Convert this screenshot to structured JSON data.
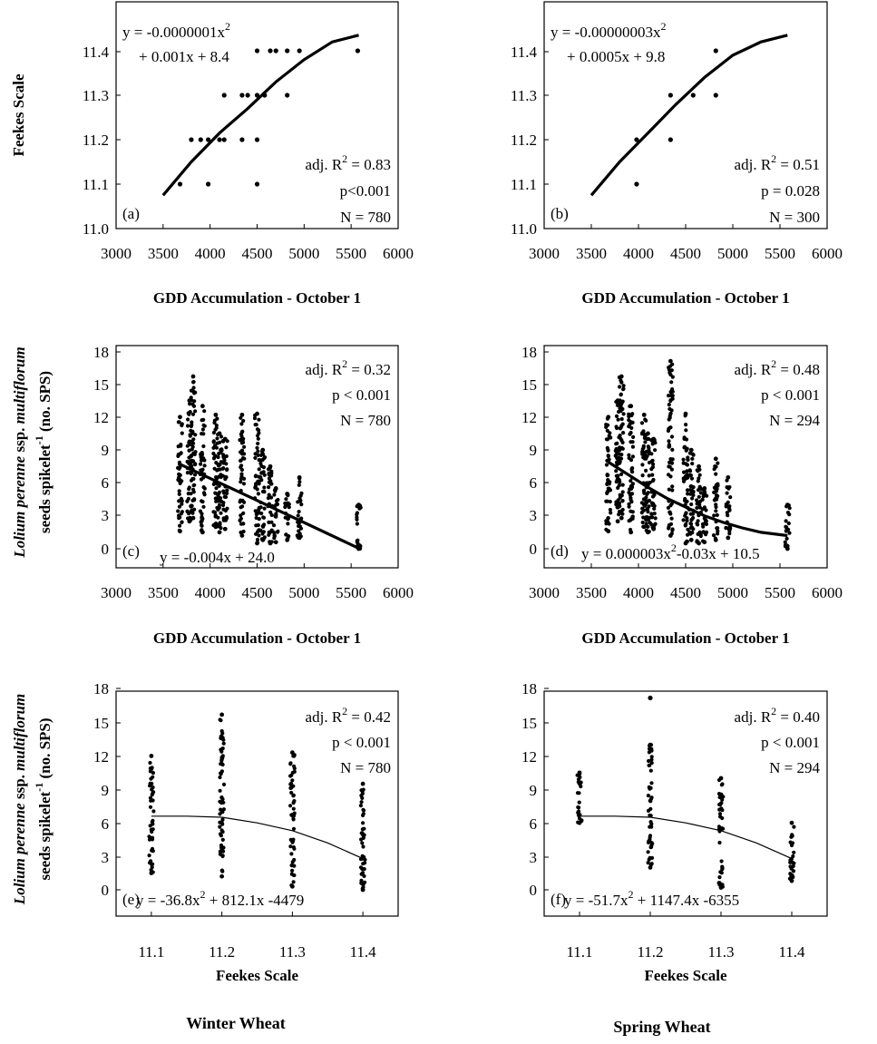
{
  "chart_data": [
    {
      "panel": "a",
      "type": "scatter",
      "column": "Winter Wheat",
      "xlabel": "GDD Accumulation - October 1",
      "ylabel": "Feekes Scale",
      "xlim": [
        3000,
        6000
      ],
      "ylim": [
        11.0,
        11.45
      ],
      "xticks": [
        "3000",
        "3500",
        "4000",
        "4500",
        "5000",
        "5500",
        "6000"
      ],
      "yticks": [
        "11.0",
        "11.1",
        "11.2",
        "11.3",
        "11.4"
      ],
      "points": [
        [
          3680,
          11.1
        ],
        [
          3980,
          11.1
        ],
        [
          4500,
          11.1
        ],
        [
          3800,
          11.2
        ],
        [
          3900,
          11.2
        ],
        [
          3980,
          11.2
        ],
        [
          4100,
          11.2
        ],
        [
          4150,
          11.2
        ],
        [
          4340,
          11.2
        ],
        [
          4500,
          11.2
        ],
        [
          4150,
          11.3
        ],
        [
          4340,
          11.3
        ],
        [
          4400,
          11.3
        ],
        [
          4500,
          11.3
        ],
        [
          4580,
          11.3
        ],
        [
          4820,
          11.3
        ],
        [
          4500,
          11.4
        ],
        [
          4640,
          11.4
        ],
        [
          4700,
          11.4
        ],
        [
          4820,
          11.4
        ],
        [
          4950,
          11.4
        ],
        [
          5570,
          11.4
        ]
      ],
      "fit": {
        "type": "quadratic",
        "x_range": [
          3500,
          5580
        ],
        "points": [
          [
            3500,
            11.075
          ],
          [
            3800,
            11.15
          ],
          [
            4100,
            11.215
          ],
          [
            4400,
            11.27
          ],
          [
            4700,
            11.33
          ],
          [
            5000,
            11.38
          ],
          [
            5300,
            11.42
          ],
          [
            5580,
            11.435
          ]
        ]
      },
      "equation": [
        "y = -0.0000001x",
        "+ 0.001x + 8.4"
      ],
      "stats": {
        "r2": "adj. R",
        "r2_val": " = 0.83",
        "p": "p<0.001",
        "n": "N = 780"
      },
      "tag": "(a)"
    },
    {
      "panel": "b",
      "type": "scatter",
      "column": "Spring Wheat",
      "xlabel": "GDD Accumulation - October 1",
      "ylabel": "",
      "xlim": [
        3000,
        6000
      ],
      "ylim": [
        11.0,
        11.45
      ],
      "xticks": [
        "3000",
        "3500",
        "4000",
        "4500",
        "5000",
        "5500",
        "6000"
      ],
      "yticks": [
        "11.0",
        "11.1",
        "11.2",
        "11.3",
        "11.4"
      ],
      "points": [
        [
          3980,
          11.1
        ],
        [
          3980,
          11.2
        ],
        [
          4340,
          11.2
        ],
        [
          4340,
          11.3
        ],
        [
          4580,
          11.3
        ],
        [
          4820,
          11.3
        ],
        [
          4820,
          11.4
        ]
      ],
      "fit": {
        "type": "quadratic",
        "x_range": [
          3500,
          5580
        ],
        "points": [
          [
            3500,
            11.075
          ],
          [
            3800,
            11.15
          ],
          [
            4100,
            11.215
          ],
          [
            4400,
            11.28
          ],
          [
            4700,
            11.34
          ],
          [
            5000,
            11.39
          ],
          [
            5300,
            11.42
          ],
          [
            5580,
            11.435
          ]
        ]
      },
      "equation": [
        "y = -0.00000003x",
        "+ 0.0005x + 9.8"
      ],
      "stats": {
        "r2": "adj. R",
        "r2_val": " = 0.51",
        "p": "p = 0.028",
        "n": "N = 300"
      },
      "tag": "(b)"
    },
    {
      "panel": "c",
      "type": "scatter",
      "column": "Winter Wheat",
      "xlabel": "GDD Accumulation - October 1",
      "ylabel": [
        "Lolium perenne",
        " ssp. ",
        "multiflorum",
        "seeds spikelet",
        "-1",
        " (no. SPS)"
      ],
      "xlim": [
        3000,
        6000
      ],
      "ylim": [
        -2,
        18
      ],
      "xticks": [
        "3000",
        "3500",
        "4000",
        "4500",
        "5000",
        "5500",
        "6000"
      ],
      "yticks": [
        "0",
        "3",
        "6",
        "9",
        "12",
        "15",
        "18"
      ],
      "columns": [
        [
          3680,
          1.6,
          12.0
        ],
        [
          3780,
          2.5,
          13.5
        ],
        [
          3820,
          2.8,
          15.7
        ],
        [
          3920,
          1.5,
          13.0
        ],
        [
          4060,
          2.0,
          12.2
        ],
        [
          4100,
          1.5,
          10.5
        ],
        [
          4160,
          1.8,
          10.0
        ],
        [
          4340,
          1.2,
          12.2
        ],
        [
          4500,
          0.5,
          12.3
        ],
        [
          4560,
          0.8,
          9.0
        ],
        [
          4640,
          0.5,
          7.5
        ],
        [
          4700,
          0.6,
          5.5
        ],
        [
          4820,
          0.8,
          5.0
        ],
        [
          4950,
          1.0,
          6.5
        ],
        [
          5580,
          0.0,
          4.0
        ]
      ],
      "fit": {
        "type": "linear",
        "points": [
          [
            3680,
            7.7
          ],
          [
            5580,
            0.05
          ]
        ]
      },
      "equation": [
        "y = -0.004x + 24.0"
      ],
      "stats": {
        "r2": "adj. R",
        "r2_val": " = 0.32",
        "p": "p < 0.001",
        "n": "N = 780"
      },
      "tag": "(c)"
    },
    {
      "panel": "d",
      "type": "scatter",
      "column": "Spring Wheat",
      "xlabel": "GDD Accumulation - October 1",
      "ylabel": "",
      "xlim": [
        3000,
        6000
      ],
      "ylim": [
        -2,
        18
      ],
      "xticks": [
        "3000",
        "3500",
        "4000",
        "4500",
        "5000",
        "5500",
        "6000"
      ],
      "yticks": [
        "0",
        "3",
        "6",
        "9",
        "12",
        "15",
        "18"
      ],
      "columns": [
        [
          3680,
          1.6,
          12.0
        ],
        [
          3780,
          2.5,
          13.5
        ],
        [
          3820,
          2.8,
          15.7
        ],
        [
          3920,
          1.5,
          13.0
        ],
        [
          4060,
          2.0,
          12.2
        ],
        [
          4100,
          1.5,
          10.5
        ],
        [
          4160,
          1.8,
          10.0
        ],
        [
          4340,
          1.2,
          17.1
        ],
        [
          4500,
          0.5,
          12.3
        ],
        [
          4560,
          0.8,
          9.0
        ],
        [
          4640,
          0.5,
          7.5
        ],
        [
          4700,
          0.6,
          5.5
        ],
        [
          4820,
          0.8,
          8.2
        ],
        [
          4950,
          1.0,
          6.5
        ],
        [
          5580,
          0.0,
          4.0
        ]
      ],
      "fit": {
        "type": "quadratic",
        "points": [
          [
            3680,
            7.9
          ],
          [
            3900,
            6.7
          ],
          [
            4100,
            5.6
          ],
          [
            4300,
            4.6
          ],
          [
            4500,
            3.8
          ],
          [
            4700,
            3.0
          ],
          [
            4900,
            2.4
          ],
          [
            5100,
            1.9
          ],
          [
            5300,
            1.5
          ],
          [
            5580,
            1.2
          ]
        ]
      },
      "equation": [
        "y = 0.000003x",
        "-0.03x + 10.5"
      ],
      "stats": {
        "r2": "adj. R",
        "r2_val": " = 0.48",
        "p": "p < 0.001",
        "n": "N = 294"
      },
      "tag": "(d)"
    },
    {
      "panel": "e",
      "type": "scatter",
      "column": "Winter Wheat",
      "xlabel": "Feekes Scale",
      "ylabel": [
        "Lolium perenne",
        " ssp. ",
        "multiflorum",
        "seeds spikelet",
        "-1",
        " (no. SPS)"
      ],
      "xlim": [
        11.05,
        11.45
      ],
      "ylim": [
        -2,
        18
      ],
      "xticks": [
        "11.1",
        "11.2",
        "11.3",
        "11.4"
      ],
      "yticks": [
        "0",
        "3",
        "6",
        "9",
        "12",
        "15",
        "18"
      ],
      "columns": [
        [
          11.1,
          1.5,
          12.0
        ],
        [
          11.2,
          1.2,
          15.7
        ],
        [
          11.3,
          0.3,
          12.3
        ],
        [
          11.4,
          0.0,
          9.5
        ]
      ],
      "fit": {
        "type": "quadratic",
        "points": [
          [
            11.1,
            6.6
          ],
          [
            11.15,
            6.6
          ],
          [
            11.2,
            6.5
          ],
          [
            11.25,
            6.0
          ],
          [
            11.3,
            5.3
          ],
          [
            11.35,
            4.2
          ],
          [
            11.4,
            2.8
          ]
        ]
      },
      "equation": [
        "y = -36.8x",
        " + 812.1x -4479"
      ],
      "stats": {
        "r2": "adj. R",
        "r2_val": " = 0.42",
        "p": "p < 0.001",
        "n": "N = 780"
      },
      "tag": "(e)"
    },
    {
      "panel": "f",
      "type": "scatter",
      "column": "Spring Wheat",
      "xlabel": "Feekes Scale",
      "ylabel": "",
      "xlim": [
        11.05,
        11.45
      ],
      "ylim": [
        -2,
        18
      ],
      "xticks": [
        "11.1",
        "11.2",
        "11.3",
        "11.4"
      ],
      "yticks": [
        "0",
        "3",
        "6",
        "9",
        "12",
        "15",
        "18"
      ],
      "columns": [
        [
          11.1,
          6.0,
          10.5
        ],
        [
          11.2,
          2.0,
          13.0
        ],
        [
          11.3,
          0.2,
          10.0
        ],
        [
          11.4,
          0.8,
          6.0
        ]
      ],
      "outliers": [
        [
          11.2,
          17.2
        ]
      ],
      "fit": {
        "type": "quadratic",
        "points": [
          [
            11.1,
            6.6
          ],
          [
            11.15,
            6.6
          ],
          [
            11.2,
            6.5
          ],
          [
            11.25,
            6.0
          ],
          [
            11.3,
            5.3
          ],
          [
            11.35,
            4.2
          ],
          [
            11.4,
            2.8
          ]
        ]
      },
      "equation": [
        "y = -51.7x",
        " + 1147.4x -6355"
      ],
      "stats": {
        "r2": "adj. R",
        "r2_val": " = 0.40",
        "p": "p < 0.001",
        "n": "N = 294"
      },
      "tag": "(f)"
    }
  ],
  "footer": {
    "left": "Winter Wheat",
    "right": "Spring Wheat"
  },
  "sup2": "2"
}
